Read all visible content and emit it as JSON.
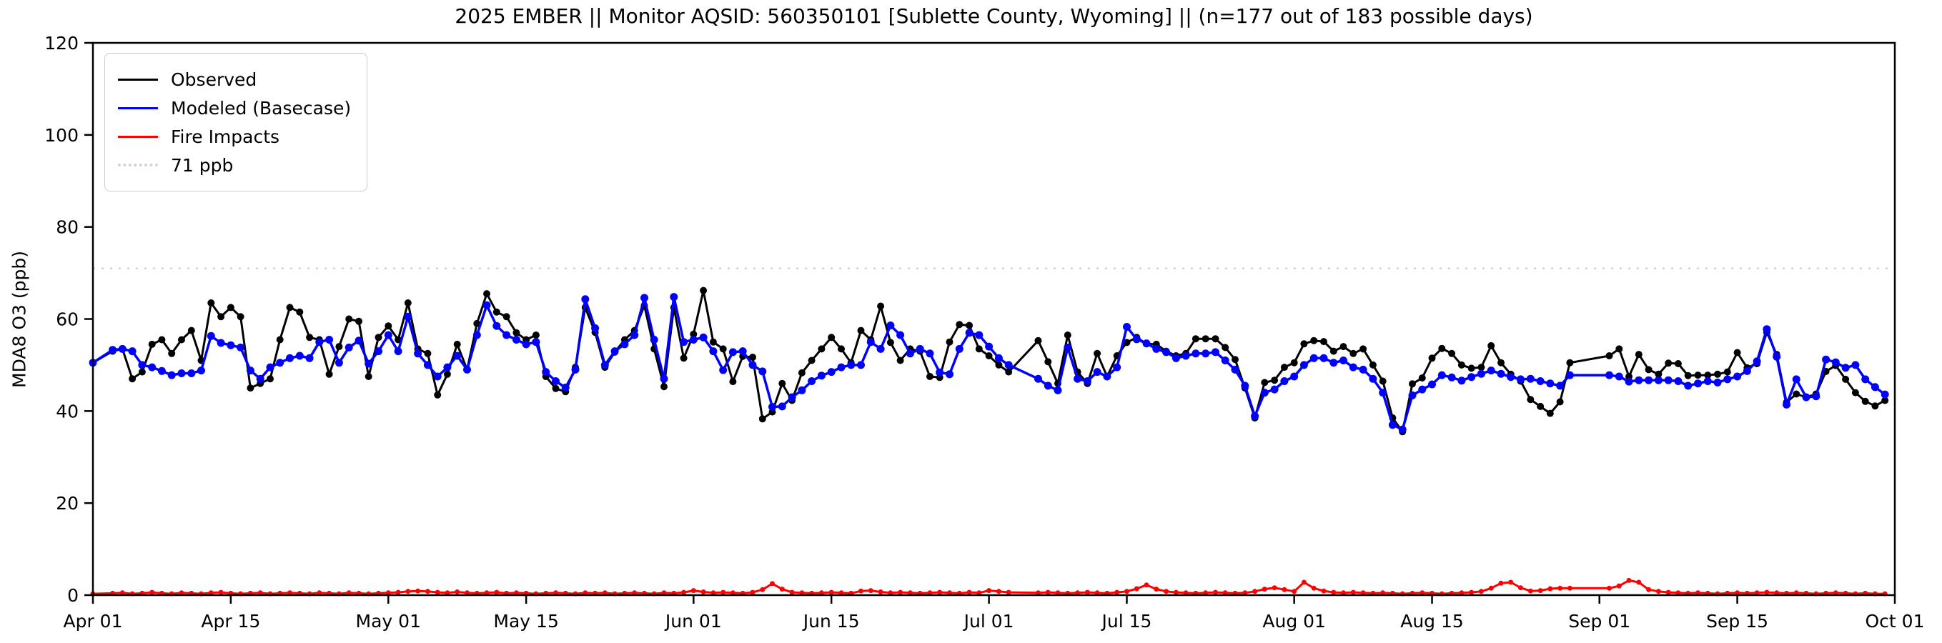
{
  "title": "2025 EMBER || Monitor AQSID: 560350101 [Sublette County, Wyoming] || (n=177 out of 183 possible days)",
  "axes": {
    "ylabel": "MDA8 O3 (ppb)",
    "ylim": [
      0,
      120
    ],
    "y_ticks": [
      0,
      20,
      40,
      60,
      80,
      100,
      120
    ],
    "xlim_days": [
      0,
      183
    ],
    "x_ticks": [
      {
        "label": "Apr 01",
        "day": 0
      },
      {
        "label": "Apr 15",
        "day": 14
      },
      {
        "label": "May 01",
        "day": 30
      },
      {
        "label": "May 15",
        "day": 44
      },
      {
        "label": "Jun 01",
        "day": 61
      },
      {
        "label": "Jun 15",
        "day": 75
      },
      {
        "label": "Jul 01",
        "day": 91
      },
      {
        "label": "Jul 15",
        "day": 105
      },
      {
        "label": "Aug 01",
        "day": 122
      },
      {
        "label": "Aug 15",
        "day": 136
      },
      {
        "label": "Sep 01",
        "day": 153
      },
      {
        "label": "Sep 15",
        "day": 167
      },
      {
        "label": "Oct 01",
        "day": 183
      }
    ]
  },
  "legend": {
    "items": [
      {
        "label": "Observed",
        "color": "#000000",
        "style": "solid"
      },
      {
        "label": "Modeled (Basecase)",
        "color": "#0000ff",
        "style": "solid"
      },
      {
        "label": "Fire Impacts",
        "color": "#ff0000",
        "style": "solid"
      },
      {
        "label": "71 ppb",
        "color": "#d3d3d3",
        "style": "dotted"
      }
    ]
  },
  "threshold": {
    "value": 71,
    "label": "71 ppb",
    "color": "#d3d3d3"
  },
  "chart_data": {
    "type": "line",
    "x_unit": "day index (daily values, day 0 = Apr 01, day 182 = Sep 30)",
    "x_start_date": "Apr 01",
    "x_end_date": "Sep 30",
    "n_observed": 177,
    "n_possible": 183,
    "missing_day_indices": [
      1,
      94,
      95,
      151,
      152,
      153
    ],
    "title": "2025 EMBER || Monitor AQSID: 560350101 [Sublette County, Wyoming] || (n=177 out of 183 possible days)",
    "ylabel": "MDA8 O3 (ppb)",
    "ylim": [
      0,
      120
    ],
    "legend_position": "upper left",
    "grid": false,
    "series": [
      {
        "name": "Observed",
        "color": "#000000",
        "values": [
          50.5,
          null,
          53,
          53.5,
          47,
          48.5,
          54.5,
          55.5,
          52.5,
          55.5,
          57.5,
          51,
          63.5,
          60.5,
          62.5,
          60.5,
          45,
          46,
          47,
          55.5,
          62.5,
          61.5,
          56,
          55.5,
          48,
          54,
          60,
          59.5,
          47.5,
          56,
          58.5,
          55.5,
          63.5,
          53.5,
          52.5,
          43.5,
          48,
          54.5,
          49,
          59,
          65.5,
          61.5,
          60.5,
          57,
          55.5,
          56.5,
          47.5,
          44.9,
          44.2,
          49.5,
          62.5,
          57.1,
          49.5,
          52.8,
          55.5,
          57.5,
          62.9,
          53.5,
          45.3,
          62.5,
          51.5,
          56.7,
          66.2,
          55,
          53.5,
          46.4,
          51.9,
          51.7,
          38.3,
          39.8,
          46,
          42.3,
          48.3,
          51,
          53.5,
          56,
          53.5,
          50.5,
          57.5,
          55.5,
          62.8,
          54.9,
          51,
          53.5,
          53,
          47.5,
          47.3,
          55,
          58.8,
          58.6,
          53.5,
          52,
          50,
          48.5,
          null,
          null,
          55.3,
          50.7,
          46,
          56.5,
          48.5,
          46,
          52.5,
          47.5,
          52,
          54.9,
          56,
          54.6,
          54.5,
          53,
          52,
          52.5,
          55.7,
          55.7,
          55.7,
          53.8,
          51.2,
          45,
          38.5,
          46.2,
          46.7,
          49.5,
          50.5,
          54.6,
          55.3,
          55.1,
          53,
          54,
          52.5,
          53.5,
          50,
          46.5,
          38.5,
          35.5,
          45.9,
          47.2,
          51.5,
          53.6,
          52.5,
          50,
          49.3,
          49.5,
          54.2,
          50.5,
          48,
          46.5,
          42.5,
          41,
          39.5,
          42,
          50.5,
          null,
          null,
          null,
          52,
          53.5,
          47.5,
          52.3,
          49,
          48,
          50.4,
          50.3,
          47.7,
          47.8,
          47.8,
          48,
          48.5,
          52.7,
          49.4,
          50.3,
          57.1,
          52.3,
          41.9,
          43.7,
          43,
          43.7,
          48.6,
          49.9,
          46.9,
          44,
          42.1,
          41.1,
          42.3
        ]
      },
      {
        "name": "Modeled (Basecase)",
        "color": "#0000ff",
        "values": [
          50.5,
          null,
          53.3,
          53.5,
          53,
          50,
          49.5,
          48.7,
          47.8,
          48.2,
          48.2,
          48.8,
          56.3,
          54.8,
          54.3,
          53.8,
          48.8,
          47,
          49.5,
          50.5,
          51.5,
          52,
          51.5,
          55,
          55.5,
          50.5,
          53.8,
          55.3,
          50.3,
          53,
          56.5,
          53,
          60.5,
          52.5,
          50,
          47.5,
          49.5,
          52,
          49,
          56.5,
          63,
          58.5,
          56.5,
          55.5,
          54.5,
          55,
          48.5,
          46.5,
          45.1,
          49,
          64.3,
          58,
          50,
          53,
          54.5,
          56.5,
          64.6,
          55.5,
          47,
          64.8,
          55,
          55.5,
          56,
          53,
          48.9,
          52.8,
          53,
          50,
          48.6,
          40.9,
          41,
          43,
          44.5,
          46.5,
          47.7,
          48.5,
          49.5,
          50,
          50,
          55,
          53.5,
          58.6,
          56.5,
          52.5,
          53.5,
          52.5,
          48.4,
          48,
          53.5,
          57,
          56.5,
          54,
          51.5,
          50,
          null,
          null,
          47,
          45.5,
          44.5,
          53.8,
          47,
          46.5,
          48.5,
          47.5,
          49.5,
          58.3,
          55.6,
          54.7,
          53.5,
          52.8,
          51.5,
          52,
          52.5,
          52.5,
          52.8,
          51,
          49,
          45.5,
          38.9,
          44,
          44.7,
          46.5,
          47.5,
          50,
          51.5,
          51.5,
          50.5,
          51,
          49.5,
          49,
          47,
          44,
          37,
          36,
          43.4,
          44.7,
          45.8,
          47.8,
          47.3,
          46.6,
          47.4,
          48.1,
          48.8,
          48.1,
          47.4,
          46.9,
          47,
          46.5,
          46,
          45.5,
          47.8,
          null,
          null,
          null,
          47.8,
          47.5,
          46.4,
          46.7,
          46.7,
          46.7,
          46.7,
          46.5,
          45.5,
          46,
          46.5,
          46.2,
          46.9,
          47.5,
          48.7,
          50.8,
          57.8,
          51.8,
          41.4,
          46.9,
          43,
          43.2,
          51.2,
          50.6,
          49.4,
          50,
          46.9,
          45.2,
          43.6
        ]
      },
      {
        "name": "Fire Impacts",
        "color": "#ff0000",
        "values": [
          0.3,
          null,
          0.4,
          0.5,
          0.3,
          0.4,
          0.6,
          0.4,
          0.3,
          0.5,
          0.4,
          0.3,
          0.5,
          0.6,
          0.4,
          0.3,
          0.4,
          0.5,
          0.3,
          0.4,
          0.5,
          0.4,
          0.3,
          0.5,
          0.4,
          0.3,
          0.5,
          0.4,
          0.3,
          0.4,
          0.5,
          0.6,
          0.8,
          0.9,
          0.8,
          0.6,
          0.5,
          0.7,
          0.5,
          0.4,
          0.5,
          0.6,
          0.4,
          0.5,
          0.4,
          0.3,
          0.4,
          0.5,
          0.4,
          0.3,
          0.5,
          0.4,
          0.5,
          0.3,
          0.4,
          0.5,
          0.4,
          0.3,
          0.5,
          0.4,
          0.6,
          1.0,
          0.7,
          0.5,
          0.6,
          0.5,
          0.4,
          0.6,
          1.2,
          2.5,
          1.3,
          0.6,
          0.5,
          0.4,
          0.5,
          0.6,
          0.5,
          0.4,
          0.9,
          1.0,
          0.7,
          0.5,
          0.6,
          0.5,
          0.4,
          0.5,
          0.6,
          0.5,
          0.4,
          0.6,
          0.5,
          1.0,
          0.8,
          0.6,
          null,
          null,
          0.5,
          0.6,
          0.5,
          0.4,
          0.5,
          0.6,
          0.5,
          0.4,
          0.6,
          0.8,
          1.4,
          2.2,
          1.3,
          0.8,
          0.6,
          0.5,
          0.4,
          0.5,
          0.6,
          0.5,
          0.4,
          0.5,
          0.8,
          1.3,
          1.6,
          1.2,
          0.8,
          2.8,
          1.5,
          0.9,
          0.6,
          0.5,
          0.6,
          0.5,
          0.4,
          0.5,
          0.4,
          0.3,
          0.4,
          0.5,
          0.4,
          0.3,
          0.4,
          0.5,
          0.6,
          0.8,
          1.5,
          2.6,
          2.8,
          1.6,
          0.9,
          1.0,
          1.4,
          1.5,
          1.5,
          null,
          null,
          null,
          1.5,
          2.0,
          3.2,
          2.8,
          1.2,
          0.8,
          0.6,
          0.5,
          0.4,
          0.5,
          0.4,
          0.3,
          0.4,
          0.5,
          0.4,
          0.5,
          0.6,
          0.5,
          0.4,
          0.5,
          0.4,
          0.3,
          0.4,
          0.5,
          0.4,
          0.3,
          0.4,
          0.3,
          0.3
        ]
      }
    ],
    "threshold_line": {
      "value": 71,
      "label": "71 ppb",
      "color": "#d3d3d3",
      "style": "dotted"
    }
  }
}
